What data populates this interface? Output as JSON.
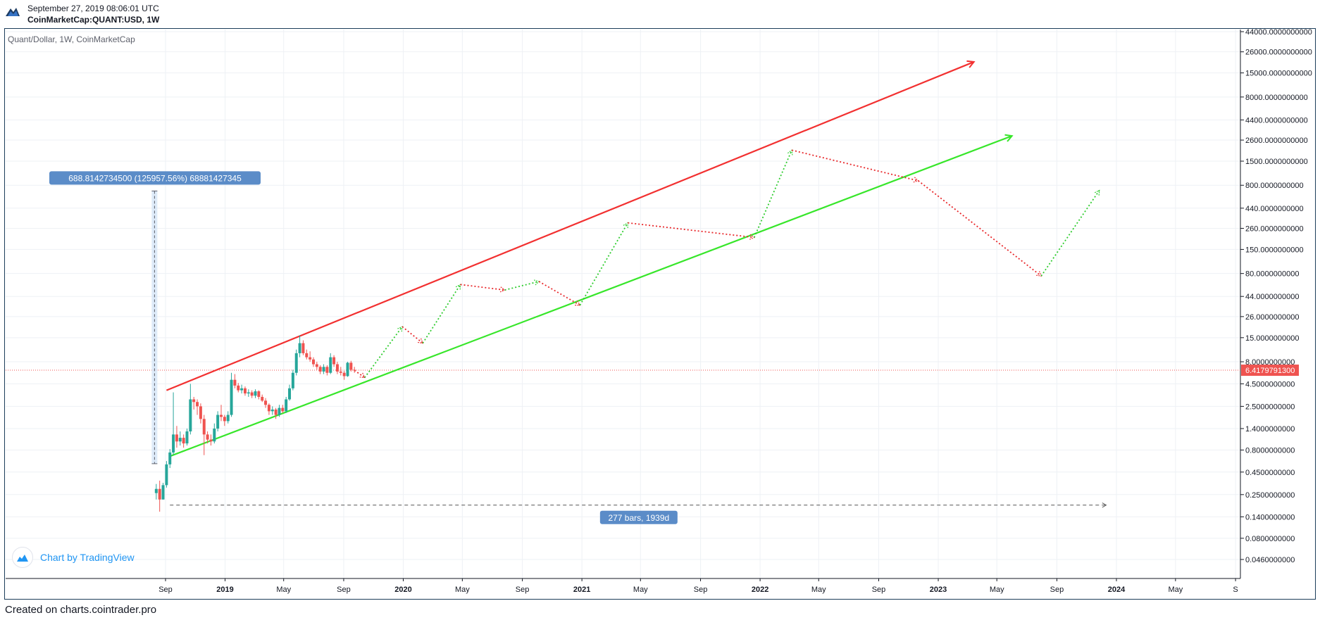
{
  "header": {
    "timestamp": "September 27, 2019 08:06:01 UTC",
    "symbol": "CoinMarketCap:QUANT:USD, 1W"
  },
  "legend": {
    "title": "Quant/Dollar, 1W, CoinMarketCap"
  },
  "badge": {
    "text": "Chart by TradingView",
    "icon": "tradingview-cloud-icon"
  },
  "footer": {
    "credit": "Created on charts.cointrader.pro"
  },
  "colors": {
    "up": "#26a69a",
    "down": "#ef5350",
    "upper_line": "#f23030",
    "lower_line": "#37e62a",
    "projection_red": "#e8272a",
    "projection_green": "#2ecc2e",
    "last_price": "#ef5350",
    "measure": "#5b8cc8",
    "grid": "#eef1f5"
  },
  "chart_data": {
    "type": "candlestick",
    "title": "Quant/Dollar, 1W, CoinMarketCap",
    "scale": "log",
    "last_price_label": "6.4179791300",
    "last_price": 6.41797913,
    "y_ticks": [
      "44000.0000000000",
      "26000.0000000000",
      "15000.0000000000",
      "8000.0000000000",
      "4400.0000000000",
      "2600.0000000000",
      "1500.0000000000",
      "800.0000000000",
      "440.0000000000",
      "260.0000000000",
      "150.0000000000",
      "80.0000000000",
      "44.0000000000",
      "26.0000000000",
      "15.0000000000",
      "8.0000000000",
      "4.5000000000",
      "2.5000000000",
      "1.4000000000",
      "0.8000000000",
      "0.4500000000",
      "0.2500000000",
      "0.1400000000",
      "0.0800000000",
      "0.0460000000"
    ],
    "x_ticks": [
      {
        "label": "Sep",
        "date": "2018-09-01",
        "year": false
      },
      {
        "label": "2019",
        "date": "2019-01-01",
        "year": true
      },
      {
        "label": "May",
        "date": "2019-05-01",
        "year": false
      },
      {
        "label": "Sep",
        "date": "2019-09-01",
        "year": false
      },
      {
        "label": "2020",
        "date": "2020-01-01",
        "year": true
      },
      {
        "label": "May",
        "date": "2020-05-01",
        "year": false
      },
      {
        "label": "Sep",
        "date": "2020-09-01",
        "year": false
      },
      {
        "label": "2021",
        "date": "2021-01-01",
        "year": true
      },
      {
        "label": "May",
        "date": "2021-05-01",
        "year": false
      },
      {
        "label": "Sep",
        "date": "2021-09-01",
        "year": false
      },
      {
        "label": "2022",
        "date": "2022-01-01",
        "year": true
      },
      {
        "label": "May",
        "date": "2022-05-01",
        "year": false
      },
      {
        "label": "Sep",
        "date": "2022-09-01",
        "year": false
      },
      {
        "label": "2023",
        "date": "2023-01-01",
        "year": true
      },
      {
        "label": "May",
        "date": "2023-05-01",
        "year": false
      },
      {
        "label": "Sep",
        "date": "2023-09-01",
        "year": false
      },
      {
        "label": "2024",
        "date": "2024-01-01",
        "year": true
      },
      {
        "label": "May",
        "date": "2024-05-01",
        "year": false
      },
      {
        "label": "S",
        "date": "2024-09-01",
        "year": false
      }
    ],
    "candles": [
      {
        "date": "2018-08-13",
        "open": 0.26,
        "high": 0.33,
        "low": 0.22,
        "close": 0.29
      },
      {
        "date": "2018-08-20",
        "open": 0.29,
        "high": 0.36,
        "low": 0.16,
        "close": 0.22
      },
      {
        "date": "2018-08-27",
        "open": 0.22,
        "high": 0.34,
        "low": 0.22,
        "close": 0.32
      },
      {
        "date": "2018-09-03",
        "open": 0.32,
        "high": 0.6,
        "low": 0.3,
        "close": 0.55
      },
      {
        "date": "2018-09-10",
        "open": 0.55,
        "high": 0.82,
        "low": 0.5,
        "close": 0.75
      },
      {
        "date": "2018-09-17",
        "open": 0.75,
        "high": 3.6,
        "low": 0.7,
        "close": 1.2
      },
      {
        "date": "2018-09-24",
        "open": 1.2,
        "high": 1.5,
        "low": 0.85,
        "close": 1.0
      },
      {
        "date": "2018-10-01",
        "open": 1.0,
        "high": 1.3,
        "low": 0.9,
        "close": 1.1
      },
      {
        "date": "2018-10-08",
        "open": 1.1,
        "high": 1.2,
        "low": 0.85,
        "close": 0.95
      },
      {
        "date": "2018-10-15",
        "open": 0.95,
        "high": 1.4,
        "low": 0.9,
        "close": 1.3
      },
      {
        "date": "2018-10-22",
        "open": 1.3,
        "high": 4.5,
        "low": 1.2,
        "close": 3.0
      },
      {
        "date": "2018-10-29",
        "open": 3.0,
        "high": 3.2,
        "low": 2.3,
        "close": 2.8
      },
      {
        "date": "2018-11-05",
        "open": 2.8,
        "high": 3.0,
        "low": 2.0,
        "close": 2.5
      },
      {
        "date": "2018-11-12",
        "open": 2.5,
        "high": 2.7,
        "low": 1.6,
        "close": 1.8
      },
      {
        "date": "2018-11-19",
        "open": 1.8,
        "high": 2.0,
        "low": 0.7,
        "close": 1.2
      },
      {
        "date": "2018-11-26",
        "open": 1.2,
        "high": 1.3,
        "low": 0.95,
        "close": 1.05
      },
      {
        "date": "2018-12-03",
        "open": 1.05,
        "high": 1.2,
        "low": 0.9,
        "close": 1.0
      },
      {
        "date": "2018-12-10",
        "open": 1.0,
        "high": 1.6,
        "low": 0.95,
        "close": 1.4
      },
      {
        "date": "2018-12-17",
        "open": 1.4,
        "high": 2.2,
        "low": 1.3,
        "close": 2.0
      },
      {
        "date": "2018-12-24",
        "open": 2.0,
        "high": 2.6,
        "low": 1.7,
        "close": 1.9
      },
      {
        "date": "2018-12-31",
        "open": 1.9,
        "high": 2.0,
        "low": 1.5,
        "close": 1.7
      },
      {
        "date": "2019-01-07",
        "open": 1.7,
        "high": 2.2,
        "low": 1.6,
        "close": 2.0
      },
      {
        "date": "2019-01-14",
        "open": 2.0,
        "high": 6.0,
        "low": 1.9,
        "close": 5.0
      },
      {
        "date": "2019-01-21",
        "open": 5.0,
        "high": 5.8,
        "low": 4.0,
        "close": 4.3
      },
      {
        "date": "2019-01-28",
        "open": 4.3,
        "high": 4.6,
        "low": 3.6,
        "close": 3.8
      },
      {
        "date": "2019-02-04",
        "open": 3.8,
        "high": 4.4,
        "low": 3.5,
        "close": 4.0
      },
      {
        "date": "2019-02-11",
        "open": 4.0,
        "high": 4.2,
        "low": 3.3,
        "close": 3.5
      },
      {
        "date": "2019-02-18",
        "open": 3.5,
        "high": 3.9,
        "low": 3.2,
        "close": 3.6
      },
      {
        "date": "2019-02-25",
        "open": 3.6,
        "high": 3.8,
        "low": 3.1,
        "close": 3.3
      },
      {
        "date": "2019-03-04",
        "open": 3.3,
        "high": 3.9,
        "low": 3.1,
        "close": 3.7
      },
      {
        "date": "2019-03-11",
        "open": 3.7,
        "high": 3.8,
        "low": 3.0,
        "close": 3.2
      },
      {
        "date": "2019-03-18",
        "open": 3.2,
        "high": 3.4,
        "low": 2.8,
        "close": 2.9
      },
      {
        "date": "2019-03-25",
        "open": 2.9,
        "high": 3.1,
        "low": 2.4,
        "close": 2.6
      },
      {
        "date": "2019-04-01",
        "open": 2.6,
        "high": 2.7,
        "low": 2.0,
        "close": 2.2
      },
      {
        "date": "2019-04-08",
        "open": 2.2,
        "high": 2.5,
        "low": 2.0,
        "close": 2.3
      },
      {
        "date": "2019-04-15",
        "open": 2.3,
        "high": 2.4,
        "low": 1.8,
        "close": 2.0
      },
      {
        "date": "2019-04-22",
        "open": 2.0,
        "high": 2.6,
        "low": 1.9,
        "close": 2.4
      },
      {
        "date": "2019-04-29",
        "open": 2.4,
        "high": 2.6,
        "low": 2.1,
        "close": 2.2
      },
      {
        "date": "2019-05-06",
        "open": 2.2,
        "high": 3.2,
        "low": 2.1,
        "close": 3.0
      },
      {
        "date": "2019-05-13",
        "open": 3.0,
        "high": 4.4,
        "low": 2.9,
        "close": 4.0
      },
      {
        "date": "2019-05-20",
        "open": 4.0,
        "high": 6.5,
        "low": 3.8,
        "close": 6.0
      },
      {
        "date": "2019-05-27",
        "open": 6.0,
        "high": 11.0,
        "low": 5.6,
        "close": 10.0
      },
      {
        "date": "2019-06-03",
        "open": 10.0,
        "high": 16.0,
        "low": 9.0,
        "close": 13.0
      },
      {
        "date": "2019-06-10",
        "open": 13.0,
        "high": 14.0,
        "low": 9.5,
        "close": 10.0
      },
      {
        "date": "2019-06-17",
        "open": 10.0,
        "high": 11.0,
        "low": 8.5,
        "close": 9.0
      },
      {
        "date": "2019-06-24",
        "open": 9.0,
        "high": 10.5,
        "low": 8.0,
        "close": 8.5
      },
      {
        "date": "2019-07-01",
        "open": 8.5,
        "high": 9.0,
        "low": 7.0,
        "close": 7.5
      },
      {
        "date": "2019-07-08",
        "open": 7.5,
        "high": 8.0,
        "low": 6.5,
        "close": 7.0
      },
      {
        "date": "2019-07-15",
        "open": 7.0,
        "high": 7.3,
        "low": 5.8,
        "close": 6.2
      },
      {
        "date": "2019-07-22",
        "open": 6.2,
        "high": 7.5,
        "low": 5.8,
        "close": 7.0
      },
      {
        "date": "2019-07-29",
        "open": 7.0,
        "high": 7.3,
        "low": 5.6,
        "close": 6.0
      },
      {
        "date": "2019-08-05",
        "open": 6.0,
        "high": 10.0,
        "low": 5.8,
        "close": 9.0
      },
      {
        "date": "2019-08-12",
        "open": 9.0,
        "high": 9.5,
        "low": 7.0,
        "close": 7.5
      },
      {
        "date": "2019-08-19",
        "open": 7.5,
        "high": 8.0,
        "low": 5.8,
        "close": 6.2
      },
      {
        "date": "2019-08-26",
        "open": 6.2,
        "high": 7.0,
        "low": 5.6,
        "close": 6.0
      },
      {
        "date": "2019-09-02",
        "open": 6.0,
        "high": 6.3,
        "low": 5.0,
        "close": 5.5
      },
      {
        "date": "2019-09-09",
        "open": 5.5,
        "high": 8.0,
        "low": 5.4,
        "close": 7.8
      },
      {
        "date": "2019-09-16",
        "open": 7.8,
        "high": 8.2,
        "low": 6.2,
        "close": 6.5
      },
      {
        "date": "2019-09-23",
        "open": 6.5,
        "high": 7.0,
        "low": 6.0,
        "close": 6.4179791
      }
    ],
    "channel": {
      "upper": [
        {
          "date": "2018-09-03",
          "value": 3.8
        },
        {
          "date": "2023-03-15",
          "value": 20000
        }
      ],
      "lower": [
        {
          "date": "2018-09-10",
          "value": 0.68
        },
        {
          "date": "2023-06-01",
          "value": 2900
        }
      ]
    },
    "projection_path": [
      {
        "date": "2019-09-23",
        "value": 6.4
      },
      {
        "date": "2019-10-14",
        "value": 5.3
      },
      {
        "date": "2019-12-30",
        "value": 20
      },
      {
        "date": "2020-02-10",
        "value": 13
      },
      {
        "date": "2020-04-27",
        "value": 60
      },
      {
        "date": "2020-07-27",
        "value": 52
      },
      {
        "date": "2020-10-05",
        "value": 65
      },
      {
        "date": "2020-12-28",
        "value": 35
      },
      {
        "date": "2021-04-05",
        "value": 300
      },
      {
        "date": "2021-12-20",
        "value": 205
      },
      {
        "date": "2022-03-07",
        "value": 2000
      },
      {
        "date": "2022-11-21",
        "value": 900
      },
      {
        "date": "2023-07-31",
        "value": 75
      },
      {
        "date": "2023-11-27",
        "value": 700
      }
    ],
    "measure_vertical": {
      "date": "2018-09-03",
      "from": 0.56,
      "to": 689,
      "label": "688.8142734500 (125957.56%) 68881427345"
    },
    "measure_horizontal": {
      "from": "2018-09-10",
      "to": "2023-12-11",
      "value": 0.19,
      "label": "277 bars, 1939d"
    }
  }
}
